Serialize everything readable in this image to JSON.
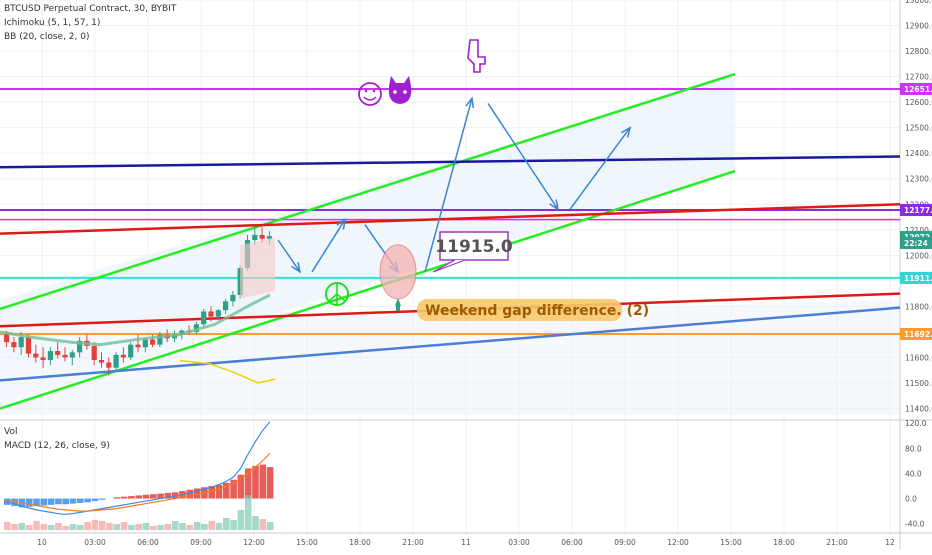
{
  "header": {
    "symbol_line": "BTCUSD Perpetual Contract, 30, BYBIT",
    "ichimoku_line": "Ichimoku (5, 1, 57, 1)",
    "bb_line": "BB (20, close, 2, 0)",
    "vol_label": "Vol",
    "macd_line": "MACD (12, 26, close, 9)"
  },
  "colors": {
    "green_channel": "#22ee22",
    "red_line": "#e01818",
    "navy_line": "#1a1aa0",
    "magenta_line": "#cc33ff",
    "cyan_line": "#33e0e0",
    "orange_line": "#ff9a2e",
    "blue_trend": "#4a7fd4",
    "arrow_blue": "#3c82d6",
    "up_candle": "#2ea08a",
    "down_candle": "#e0423b",
    "macd_line": "#3b8de8",
    "signal_line": "#ff7a1a"
  },
  "chart_data": {
    "type": "candlestick",
    "price_axis": {
      "ticks": [
        "13000.0",
        "12900.0",
        "12800.0",
        "12700.0",
        "12600.0",
        "12500.0",
        "12400.0",
        "12300.0",
        "12200.0",
        "12100.0",
        "12000.0",
        "11900.0",
        "11800.0",
        "11700.0",
        "11600.0",
        "11500.0",
        "11400.0"
      ],
      "range": [
        11355,
        13000
      ],
      "labels": [
        {
          "text": "12651.5",
          "value": 12651.5,
          "color": "#cc33ff"
        },
        {
          "text": "12177.5",
          "value": 12177.5,
          "color": "#8a2be2"
        },
        {
          "text": "12072.0",
          "value": 12072.0,
          "color": "#2ea08a"
        },
        {
          "text": "22:24",
          "value": 12048,
          "color": "#2ea08a"
        },
        {
          "text": "11911.5",
          "value": 11911.5,
          "color": "#33d4d4"
        },
        {
          "text": "11692.0",
          "value": 11692.0,
          "color": "#ff9a2e"
        }
      ]
    },
    "time_axis": {
      "ticks": [
        "10",
        "03:00",
        "06:00",
        "09:00",
        "12:00",
        "15:00",
        "18:00",
        "21:00",
        "11",
        "03:00",
        "06:00",
        "09:00",
        "12:00",
        "15:00",
        "18:00",
        "21:00",
        "12"
      ]
    },
    "macd_axis": {
      "ticks": [
        "120.0",
        "80.0",
        "40.0",
        "0.0",
        "-40.0"
      ],
      "range": [
        -50,
        125
      ]
    },
    "candles": [
      [
        11690,
        11705,
        11640,
        11660
      ],
      [
        11660,
        11680,
        11620,
        11640
      ],
      [
        11640,
        11700,
        11610,
        11680
      ],
      [
        11680,
        11690,
        11600,
        11615
      ],
      [
        11615,
        11650,
        11580,
        11600
      ],
      [
        11600,
        11640,
        11560,
        11590
      ],
      [
        11590,
        11640,
        11570,
        11625
      ],
      [
        11625,
        11660,
        11595,
        11610
      ],
      [
        11610,
        11640,
        11585,
        11600
      ],
      [
        11600,
        11630,
        11570,
        11620
      ],
      [
        11620,
        11680,
        11600,
        11665
      ],
      [
        11665,
        11690,
        11630,
        11645
      ],
      [
        11645,
        11660,
        11570,
        11590
      ],
      [
        11590,
        11620,
        11560,
        11580
      ],
      [
        11580,
        11600,
        11530,
        11560
      ],
      [
        11560,
        11620,
        11545,
        11610
      ],
      [
        11610,
        11640,
        11580,
        11600
      ],
      [
        11600,
        11660,
        11590,
        11650
      ],
      [
        11650,
        11690,
        11620,
        11640
      ],
      [
        11640,
        11680,
        11620,
        11670
      ],
      [
        11670,
        11690,
        11640,
        11650
      ],
      [
        11650,
        11700,
        11640,
        11690
      ],
      [
        11690,
        11710,
        11660,
        11675
      ],
      [
        11675,
        11705,
        11660,
        11690
      ],
      [
        11690,
        11710,
        11670,
        11705
      ],
      [
        11705,
        11725,
        11690,
        11700
      ],
      [
        11700,
        11740,
        11690,
        11730
      ],
      [
        11730,
        11790,
        11720,
        11780
      ],
      [
        11780,
        11800,
        11740,
        11760
      ],
      [
        11760,
        11790,
        11745,
        11785
      ],
      [
        11785,
        11830,
        11770,
        11820
      ],
      [
        11820,
        11860,
        11800,
        11845
      ],
      [
        11845,
        11960,
        11830,
        11950
      ],
      [
        11950,
        12080,
        11940,
        12060
      ],
      [
        12060,
        12110,
        12040,
        12080
      ],
      [
        12080,
        12110,
        12050,
        12065
      ],
      [
        12065,
        12095,
        12040,
        12075
      ]
    ],
    "trendlines": [
      {
        "name": "green-channel-upper",
        "from": [
          "start",
          11790
        ],
        "to": [
          "11 15:00",
          12710
        ],
        "color": "#22ee22"
      },
      {
        "name": "green-channel-lower",
        "from": [
          "start",
          11400
        ],
        "to": [
          "11 15:00",
          12330
        ],
        "color": "#22ee22"
      },
      {
        "name": "navy-resistance",
        "value_left": 12345,
        "value_right": 12387,
        "color": "#1a1aa0"
      },
      {
        "name": "red-upper",
        "value_left": 12085,
        "value_right": 12200,
        "color": "#e01818"
      },
      {
        "name": "red-lower",
        "value_left": 11722,
        "value_right": 11850,
        "color": "#e01818"
      },
      {
        "name": "blue-support",
        "value_left": 11510,
        "value_right": 11795,
        "color": "#4a7fd4"
      }
    ],
    "levels": [
      12651.5,
      12177.5,
      12140,
      11911.5,
      11692.0
    ],
    "projection_path": [
      12060,
      11935,
      12140,
      12055,
      11915,
      12615,
      12180,
      12500
    ],
    "annotations": {
      "callout_value": "11915.0",
      "weekend_gap": "Weekend gap difference. (2)",
      "icons": [
        "smiley-face",
        "cat-face",
        "hand-pointing-down",
        "peace-sign"
      ]
    },
    "macd_hist": [
      -10,
      -12,
      -14,
      -13,
      -12,
      -11,
      -10,
      -9,
      -9,
      -8,
      -7,
      -6,
      -4,
      -2,
      0,
      2,
      3,
      4,
      5,
      6,
      7,
      8,
      9,
      10,
      12,
      14,
      16,
      18,
      20,
      22,
      25,
      30,
      38,
      48,
      52,
      54,
      50
    ],
    "macd_line": [
      -5,
      -8,
      -12,
      -15,
      -18,
      -20,
      -22,
      -24,
      -25,
      -24,
      -22,
      -20,
      -18,
      -16,
      -14,
      -12,
      -10,
      -8,
      -6,
      -4,
      -2,
      0,
      2,
      4,
      6,
      9,
      12,
      15,
      18,
      22,
      27,
      34,
      48,
      70,
      90,
      108,
      122
    ],
    "signal_line": [
      -3,
      -5,
      -7,
      -9,
      -11,
      -13,
      -15,
      -17,
      -18,
      -19,
      -20,
      -20,
      -19,
      -18,
      -17,
      -16,
      -14,
      -12,
      -10,
      -8,
      -6,
      -4,
      -2,
      0,
      2,
      4,
      6,
      9,
      12,
      15,
      19,
      24,
      31,
      40,
      50,
      60,
      72
    ],
    "volume": [
      8,
      6,
      7,
      5,
      9,
      6,
      5,
      7,
      4,
      6,
      5,
      8,
      10,
      9,
      7,
      6,
      8,
      5,
      6,
      7,
      4,
      5,
      6,
      9,
      7,
      5,
      8,
      6,
      9,
      7,
      12,
      10,
      20,
      35,
      14,
      11,
      8
    ]
  }
}
